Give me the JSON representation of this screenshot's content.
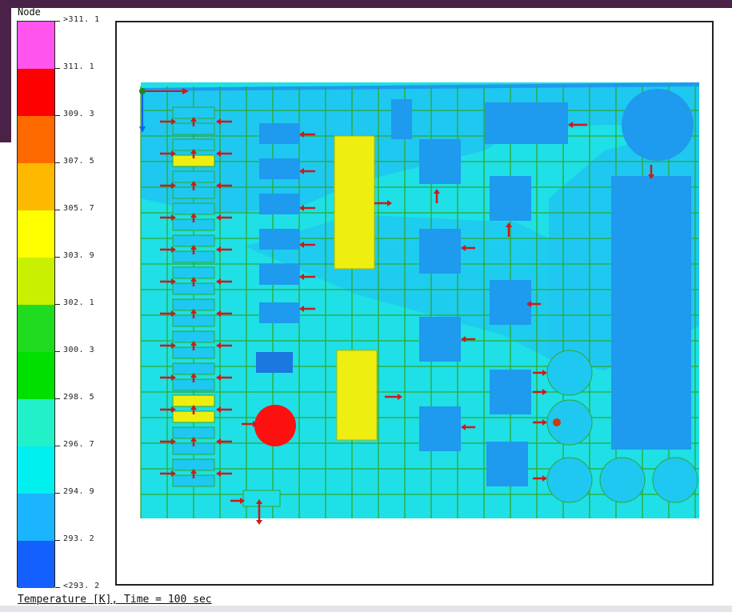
{
  "legend": {
    "title": "Node",
    "labels": [
      ">311. 1",
      "311. 1",
      "309. 3",
      "307. 5",
      "305. 7",
      "303. 9",
      "302. 1",
      "300. 3",
      "298. 5",
      "296. 7",
      "294. 9",
      "293. 2",
      "<293. 2"
    ],
    "colors": [
      "#ff55ee",
      "#ff0000",
      "#ff6a00",
      "#ffb800",
      "#ffff00",
      "#c8f000",
      "#20dc20",
      "#00e000",
      "#22f0c8",
      "#00f0f0",
      "#1ab4ff",
      "#1460ff",
      "#320a3c"
    ]
  },
  "caption": "Temperature [K], Time = 100 sec",
  "colors": {
    "board_light": "#1ee0e6",
    "board_mid": "#1ec8f0",
    "component_blue": "#1e9aee",
    "component_yellow": "#eeee10",
    "hot_red": "#ff1010",
    "grid_line": "#2ea82e",
    "arrow": "#cc1a1a"
  },
  "icons": {
    "heat_flux_arrow": "arrow-icon",
    "axis_triad": "axis-triad-icon"
  }
}
